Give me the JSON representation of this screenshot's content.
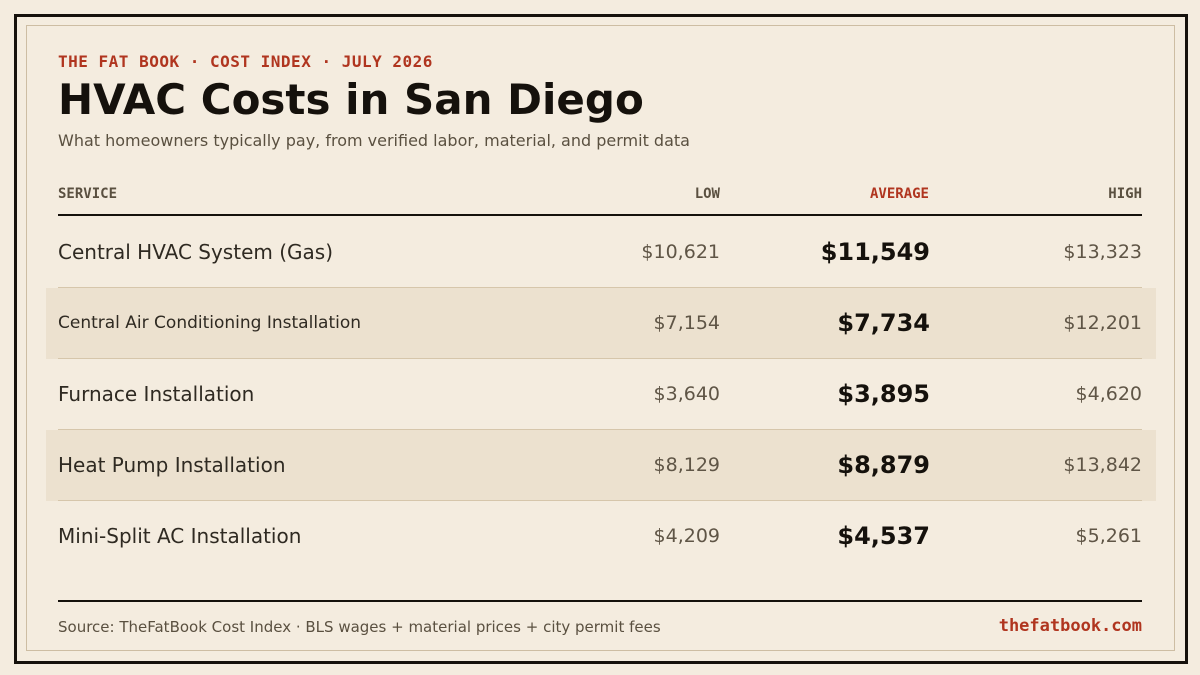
{
  "header": {
    "eyebrow": "THE FAT BOOK · COST INDEX · JULY 2026",
    "title": "HVAC Costs in San Diego",
    "subtitle": "What homeowners typically pay, from verified labor, material, and permit data"
  },
  "colors": {
    "accent": "#b0351f",
    "background": "#f4ecdf",
    "row_shade": "#ece1cf",
    "ink": "#15110c"
  },
  "table": {
    "columns": {
      "service": "SERVICE",
      "low": "LOW",
      "average": "AVERAGE",
      "high": "HIGH"
    },
    "rows": [
      {
        "service": "Central HVAC System (Gas)",
        "low": "$10,621",
        "average": "$11,549",
        "high": "$13,323"
      },
      {
        "service": "Central Air Conditioning Installation",
        "low": "$7,154",
        "average": "$7,734",
        "high": "$12,201"
      },
      {
        "service": "Furnace Installation",
        "low": "$3,640",
        "average": "$3,895",
        "high": "$4,620"
      },
      {
        "service": "Heat Pump Installation",
        "low": "$8,129",
        "average": "$8,879",
        "high": "$13,842"
      },
      {
        "service": "Mini-Split AC Installation",
        "low": "$4,209",
        "average": "$4,537",
        "high": "$5,261"
      }
    ]
  },
  "footer": {
    "source": "Source: TheFatBook Cost Index · BLS wages + material prices + city permit fees",
    "site": "thefatbook.com"
  }
}
